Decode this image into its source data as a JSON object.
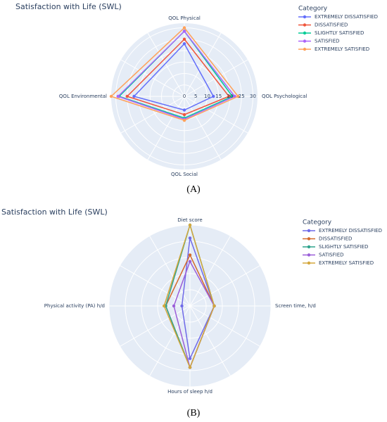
{
  "chart_data": [
    {
      "type": "radar",
      "title": "Satisfaction with Life (SWL)",
      "panel_label": "(A)",
      "legend_title": "Category",
      "categories": [
        "QOL Physical",
        "QOL Psychological",
        "QOL Social",
        "QOL Environmental"
      ],
      "rlim": [
        0,
        32
      ],
      "rticks": [
        0,
        5,
        10,
        15,
        20,
        25,
        30
      ],
      "grid": true,
      "series": [
        {
          "name": "EXTREMELY DISSATISFIED",
          "color": "#636efa",
          "values": [
            23,
            12.7,
            6,
            22
          ]
        },
        {
          "name": "DISSATISFIED",
          "color": "#ef553b",
          "values": [
            25,
            19.5,
            8,
            25
          ]
        },
        {
          "name": "SLIGHTLY SATISFIED",
          "color": "#00cc96",
          "values": [
            28.5,
            21,
            9.5,
            28.5
          ]
        },
        {
          "name": "SATISFIED",
          "color": "#ab63fa",
          "values": [
            28.5,
            22,
            10,
            29
          ]
        },
        {
          "name": "EXTREMELY SATISFIED",
          "color": "#ffa15a",
          "values": [
            30,
            23.5,
            10.5,
            32
          ]
        }
      ]
    },
    {
      "type": "radar",
      "title": "Satisfaction with Life (SWL)",
      "panel_label": "(B)",
      "legend_title": "Category",
      "categories": [
        "Diet score",
        "Screen time, h/d",
        "Hours of sleep h/d",
        "Physical activity (PA) h/d"
      ],
      "rlim": [
        0,
        10
      ],
      "grid": true,
      "series": [
        {
          "name": "EXTREMELY DISSATISFIED",
          "color": "#6f6ae8",
          "values": [
            8.4,
            3,
            6.5,
            1
          ]
        },
        {
          "name": "DISSATISFIED",
          "color": "#d3692a",
          "values": [
            6.3,
            3,
            7.6,
            3
          ]
        },
        {
          "name": "SLIGHTLY SATISFIED",
          "color": "#2ea38c",
          "values": [
            10,
            3,
            7.6,
            3
          ]
        },
        {
          "name": "SATISFIED",
          "color": "#9a5ed8",
          "values": [
            5.5,
            3,
            7.6,
            2
          ]
        },
        {
          "name": "EXTREMELY SATISFIED",
          "color": "#d4a73c",
          "values": [
            10,
            3,
            7.6,
            3.2
          ]
        }
      ]
    }
  ]
}
